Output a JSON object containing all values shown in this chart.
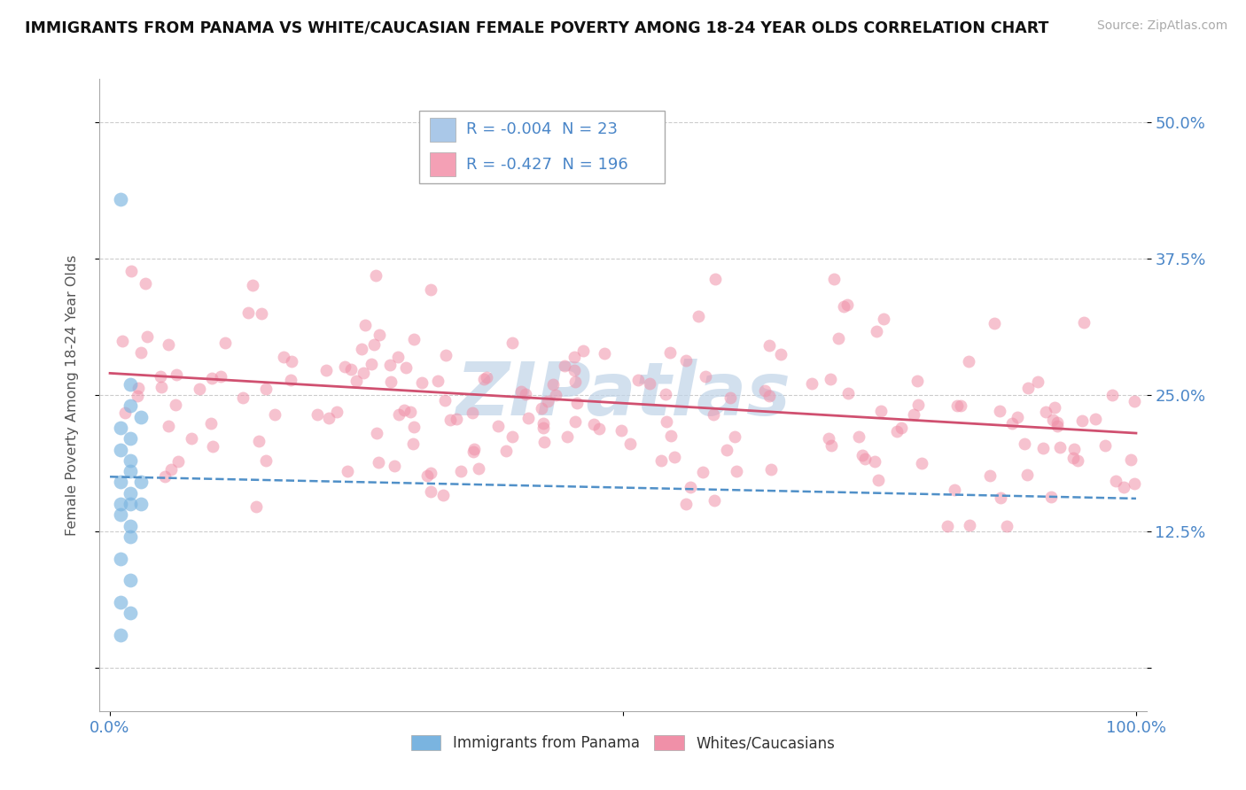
{
  "title": "IMMIGRANTS FROM PANAMA VS WHITE/CAUCASIAN FEMALE POVERTY AMONG 18-24 YEAR OLDS CORRELATION CHART",
  "source": "Source: ZipAtlas.com",
  "ylabel": "Female Poverty Among 18-24 Year Olds",
  "xlim": [
    -1,
    101
  ],
  "ylim": [
    -4,
    54
  ],
  "yticks": [
    0,
    12.5,
    25.0,
    37.5,
    50.0
  ],
  "ytick_labels": [
    "",
    "12.5%",
    "25.0%",
    "37.5%",
    "50.0%"
  ],
  "xtick_positions": [
    0,
    50,
    100
  ],
  "xtick_labels": [
    "0.0%",
    "",
    "100.0%"
  ],
  "legend_entries": [
    {
      "label": "Immigrants from Panama",
      "R": "-0.004",
      "N": "23",
      "color": "#aac8e8"
    },
    {
      "label": "Whites/Caucasians",
      "R": "-0.427",
      "N": "196",
      "color": "#f4a0b5"
    }
  ],
  "blue_color": "#7ab4e0",
  "pink_color": "#f090a8",
  "trend_blue_color": "#5090c8",
  "trend_pink_color": "#d05070",
  "watermark": "ZIPatlas",
  "watermark_color": "#c0d4e8",
  "background_color": "#ffffff",
  "grid_color": "#cccccc",
  "title_color": "#111111",
  "axis_label_color": "#555555",
  "tick_label_color": "#4a86c8",
  "blue_x": [
    1,
    2,
    2,
    3,
    1,
    2,
    1,
    2,
    2,
    1,
    3,
    2,
    1,
    2,
    3,
    1,
    2,
    2,
    1,
    2,
    1,
    2,
    1
  ],
  "blue_y": [
    43,
    26,
    24,
    23,
    22,
    21,
    20,
    19,
    18,
    17,
    17,
    16,
    15,
    15,
    15,
    14,
    13,
    12,
    10,
    8,
    6,
    5,
    3
  ],
  "pink_mean_x": 50,
  "pink_mean_y": 23.5,
  "pink_trend_x0": 0,
  "pink_trend_y0": 27.0,
  "pink_trend_x1": 100,
  "pink_trend_y1": 21.5,
  "blue_trend_x0": 0,
  "blue_trend_y0": 17.5,
  "blue_trend_x1": 100,
  "blue_trend_y1": 15.5
}
